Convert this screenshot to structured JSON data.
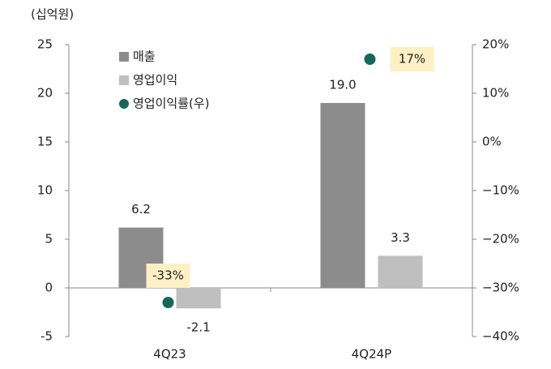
{
  "chart_data": {
    "type": "bar",
    "unit_label": "(십억원)",
    "categories": [
      "4Q23",
      "4Q24P"
    ],
    "series": [
      {
        "name": "매출",
        "color": "#8c8c8c",
        "values": [
          6.2,
          19.0
        ],
        "value_labels": [
          "6.2",
          "19.0"
        ]
      },
      {
        "name": "영업이익",
        "color": "#bfbfbf",
        "values": [
          -2.1,
          3.3
        ],
        "value_labels": [
          "-2.1",
          "3.3"
        ]
      },
      {
        "name": "영업이익률(우)",
        "color": "#17665e",
        "type": "scatter",
        "axis": "y2",
        "values": [
          -33,
          17
        ],
        "value_labels": [
          "-33%",
          "17%"
        ]
      }
    ],
    "ylim": [
      -5,
      25
    ],
    "yticks": [
      -5,
      0,
      5,
      10,
      15,
      20,
      25
    ],
    "y2lim": [
      -40,
      20
    ],
    "y2ticks": [
      {
        "value": -40,
        "label": "−40%"
      },
      {
        "value": -30,
        "label": "−30%"
      },
      {
        "value": -20,
        "label": "−20%"
      },
      {
        "value": -10,
        "label": "−10%"
      },
      {
        "value": 0,
        "label": "0%"
      },
      {
        "value": 10,
        "label": "10%"
      },
      {
        "value": 20,
        "label": "20%"
      }
    ],
    "legend": "top-left"
  }
}
